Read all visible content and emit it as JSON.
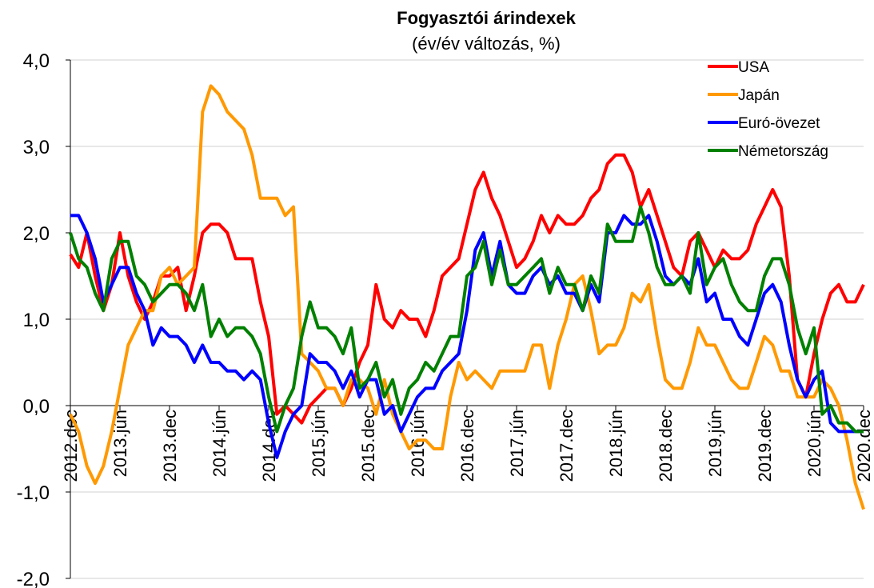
{
  "chart_data": {
    "type": "line",
    "title": "Fogyasztói árindexek",
    "subtitle": "(év/év változás, %)",
    "categories": [
      "2012.dec",
      null,
      null,
      null,
      null,
      null,
      "2013.jún",
      null,
      null,
      null,
      null,
      null,
      "2013.dec",
      null,
      null,
      null,
      null,
      null,
      "2014.jún",
      null,
      null,
      null,
      null,
      null,
      "2014.dec",
      null,
      null,
      null,
      null,
      null,
      "2015.jún",
      null,
      null,
      null,
      null,
      null,
      "2015.dec",
      null,
      null,
      null,
      null,
      null,
      "2016.jún",
      null,
      null,
      null,
      null,
      null,
      "2016.dec",
      null,
      null,
      null,
      null,
      null,
      "2017.jún",
      null,
      null,
      null,
      null,
      null,
      "2017.dec",
      null,
      null,
      null,
      null,
      null,
      "2018.jún",
      null,
      null,
      null,
      null,
      null,
      "2018.dec",
      null,
      null,
      null,
      null,
      null,
      "2019.jún",
      null,
      null,
      null,
      null,
      null,
      "2019.dec",
      null,
      null,
      null,
      null,
      null,
      "2020.jún",
      null,
      null,
      null,
      null,
      null,
      "2020.dec"
    ],
    "series": [
      {
        "name": "USA",
        "color": "#ff0000",
        "values": [
          1.75,
          1.6,
          2.0,
          1.5,
          1.1,
          1.4,
          2.0,
          1.5,
          1.2,
          1.0,
          1.2,
          1.5,
          1.5,
          1.6,
          1.1,
          1.5,
          2.0,
          2.1,
          2.1,
          2.0,
          1.7,
          1.7,
          1.7,
          1.2,
          0.8,
          -0.1,
          0.0,
          -0.1,
          -0.2,
          0.0,
          0.1,
          0.2,
          0.2,
          0.0,
          0.2,
          0.5,
          0.7,
          1.4,
          1.0,
          0.9,
          1.1,
          1.0,
          1.0,
          0.8,
          1.1,
          1.5,
          1.6,
          1.7,
          2.1,
          2.5,
          2.7,
          2.4,
          2.2,
          1.9,
          1.6,
          1.7,
          1.9,
          2.2,
          2.0,
          2.2,
          2.1,
          2.1,
          2.2,
          2.4,
          2.5,
          2.8,
          2.9,
          2.9,
          2.7,
          2.3,
          2.5,
          2.2,
          1.9,
          1.6,
          1.5,
          1.9,
          2.0,
          1.8,
          1.6,
          1.8,
          1.7,
          1.7,
          1.8,
          2.1,
          2.3,
          2.5,
          2.3,
          1.5,
          0.3,
          0.1,
          0.6,
          1.0,
          1.3,
          1.4,
          1.2,
          1.2,
          1.4
        ]
      },
      {
        "name": "Japán",
        "color": "#ff9900",
        "values": [
          -0.1,
          -0.3,
          -0.7,
          -0.9,
          -0.7,
          -0.3,
          0.2,
          0.7,
          0.9,
          1.1,
          1.1,
          1.5,
          1.6,
          1.4,
          1.5,
          1.6,
          3.4,
          3.7,
          3.6,
          3.4,
          3.3,
          3.2,
          2.9,
          2.4,
          2.4,
          2.4,
          2.2,
          2.3,
          0.6,
          0.5,
          0.4,
          0.2,
          0.2,
          0.0,
          0.3,
          0.3,
          0.2,
          -0.1,
          0.3,
          -0.1,
          -0.3,
          -0.5,
          -0.4,
          -0.4,
          -0.5,
          -0.5,
          0.1,
          0.5,
          0.3,
          0.4,
          0.3,
          0.2,
          0.4,
          0.4,
          0.4,
          0.4,
          0.7,
          0.7,
          0.2,
          0.7,
          1.0,
          1.4,
          1.5,
          1.1,
          0.6,
          0.7,
          0.7,
          0.9,
          1.3,
          1.2,
          1.4,
          0.8,
          0.3,
          0.2,
          0.2,
          0.5,
          0.9,
          0.7,
          0.7,
          0.5,
          0.3,
          0.2,
          0.2,
          0.5,
          0.8,
          0.7,
          0.4,
          0.4,
          0.1,
          0.1,
          0.1,
          0.3,
          0.2,
          0.0,
          -0.4,
          -0.9,
          -1.2
        ]
      },
      {
        "name": "Euró-övezet",
        "color": "#0000ff",
        "values": [
          2.2,
          2.2,
          2.0,
          1.7,
          1.2,
          1.4,
          1.6,
          1.6,
          1.3,
          1.1,
          0.7,
          0.9,
          0.8,
          0.8,
          0.7,
          0.5,
          0.7,
          0.5,
          0.5,
          0.4,
          0.4,
          0.3,
          0.4,
          0.3,
          -0.2,
          -0.6,
          -0.3,
          -0.1,
          0.0,
          0.6,
          0.5,
          0.5,
          0.4,
          0.2,
          0.4,
          0.1,
          0.3,
          0.3,
          -0.1,
          0.0,
          -0.3,
          -0.1,
          0.1,
          0.2,
          0.2,
          0.4,
          0.5,
          0.6,
          1.1,
          1.8,
          2.0,
          1.5,
          1.9,
          1.4,
          1.3,
          1.3,
          1.5,
          1.6,
          1.4,
          1.5,
          1.3,
          1.3,
          1.1,
          1.4,
          1.2,
          2.0,
          2.0,
          2.2,
          2.1,
          2.1,
          2.2,
          1.9,
          1.5,
          1.4,
          1.5,
          1.4,
          1.7,
          1.2,
          1.3,
          1.0,
          1.0,
          0.8,
          0.7,
          1.0,
          1.3,
          1.4,
          1.2,
          0.7,
          0.3,
          0.1,
          0.3,
          0.4,
          -0.2,
          -0.3,
          -0.3,
          -0.3,
          -0.3
        ]
      },
      {
        "name": "Németország",
        "color": "#008000",
        "values": [
          2.0,
          1.7,
          1.6,
          1.3,
          1.1,
          1.7,
          1.9,
          1.9,
          1.5,
          1.4,
          1.2,
          1.3,
          1.4,
          1.4,
          1.3,
          1.1,
          1.4,
          0.8,
          1.0,
          0.8,
          0.9,
          0.9,
          0.8,
          0.6,
          0.1,
          -0.3,
          0.0,
          0.2,
          0.8,
          1.2,
          0.9,
          0.9,
          0.8,
          0.6,
          0.9,
          0.2,
          0.3,
          0.5,
          0.1,
          0.3,
          -0.1,
          0.2,
          0.3,
          0.5,
          0.4,
          0.6,
          0.8,
          0.8,
          1.5,
          1.6,
          1.9,
          1.4,
          1.8,
          1.4,
          1.4,
          1.5,
          1.6,
          1.7,
          1.3,
          1.6,
          1.4,
          1.4,
          1.1,
          1.5,
          1.3,
          2.1,
          1.9,
          1.9,
          1.9,
          2.3,
          2.0,
          1.6,
          1.4,
          1.4,
          1.5,
          1.3,
          2.0,
          1.4,
          1.6,
          1.7,
          1.4,
          1.2,
          1.1,
          1.1,
          1.5,
          1.7,
          1.7,
          1.4,
          0.9,
          0.6,
          0.9,
          -0.1,
          0.0,
          -0.2,
          -0.2,
          -0.3,
          -0.3
        ]
      }
    ],
    "ylim": [
      -2,
      4
    ],
    "yticks": [
      {
        "value": -2,
        "label": "-2,0"
      },
      {
        "value": -1,
        "label": "-1,0"
      },
      {
        "value": 0,
        "label": "0,0"
      },
      {
        "value": 1,
        "label": "1,0"
      },
      {
        "value": 2,
        "label": "2,0"
      },
      {
        "value": 3,
        "label": "3,0"
      },
      {
        "value": 4,
        "label": "4,0"
      }
    ],
    "grid": true,
    "legend": "top-right"
  }
}
